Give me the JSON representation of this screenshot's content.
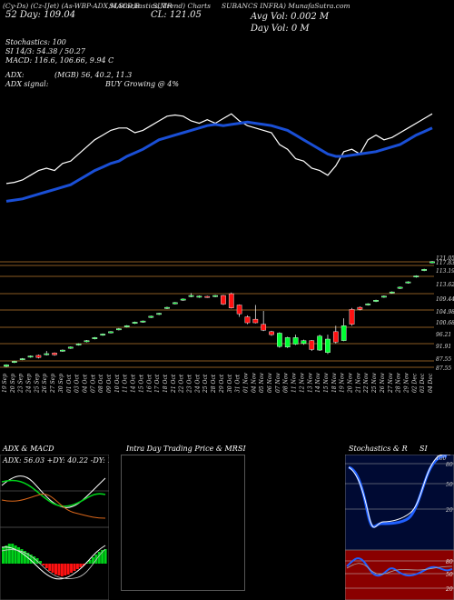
{
  "header": {
    "l1": "(Cy-Ds) (Cz-IJet) (As-WBP-ADX,MACD,B",
    "l1b": "SI,Stochastics,MR",
    "l1c": "SI,Trend) Charts",
    "l1d": "SUBANCS INFRA) MunafaSutra.com",
    "price_line": "CL: 121.05",
    "d52": "52 Day: 109.04",
    "avg_vol": "Avg Vol: 0.002  M",
    "day_vol": "Day Vol: 0  M",
    "stoch_line": "Stochastics: 100",
    "stoch_vals": "SI 14/3: 54.38  / 50.27",
    "macd_line": "MACD: 116.6,  106.66, 9.94  C",
    "adx_line": "ADX:",
    "adx_vals": "(MGB) 56, 40.2,  11.3",
    "adx_signal": "ADX  signal:",
    "adx_signal_val": "BUY Growing @ 4%"
  },
  "colors": {
    "bg": "#000000",
    "up": "#00ff33",
    "down": "#ff1111",
    "ma": "#1a4fd6",
    "grid": "#8a5a22"
  },
  "price_levels": [
    "121.05",
    "117.83",
    "113.19",
    "113.62",
    "109.44",
    "104.98",
    "100.68",
    "96.21",
    "91.91",
    "87.55",
    "87.55"
  ],
  "dates": [
    "19 Sep",
    "20 Sep",
    "23 Sep",
    "24 Sep",
    "25 Sep",
    "26 Sep",
    "27 Sep",
    "30 Sep",
    "01 Oct",
    "03 Oct",
    "04 Oct",
    "07 Oct",
    "08 Oct",
    "09 Oct",
    "10 Oct",
    "11 Oct",
    "14 Oct",
    "15 Oct",
    "16 Oct",
    "17 Oct",
    "18 Oct",
    "21 Oct",
    "22 Oct",
    "23 Oct",
    "24 Oct",
    "25 Oct",
    "28 Oct",
    "29 Oct",
    "30 Oct",
    "31 Oct",
    "01 Nov",
    "04 Nov",
    "05 Nov",
    "06 Nov",
    "07 Nov",
    "08 Nov",
    "11 Nov",
    "12 Nov",
    "13 Nov",
    "14 Nov",
    "15 Nov",
    "18 Nov",
    "19 Nov",
    "20 Nov",
    "21 Nov",
    "22 Nov",
    "25 Nov",
    "26 Nov",
    "27 Nov",
    "28 Nov",
    "29 Nov",
    "02 Dec",
    "03 Dec",
    "04 Dec"
  ],
  "panels": {
    "adx_title": "ADX  & MACD",
    "adx_vals": "ADX: 56.03  +DY: 40.22  -DY: 11.33",
    "intra_title": "Intra  Day Trading Price  & MR",
    "intra_si": "SI",
    "stoch_title": "Stochastics & R",
    "stoch_si": "SI",
    "stoch_ticks": [
      "80",
      "50",
      "20"
    ],
    "rsi_ticks": [
      "80",
      "50",
      "20"
    ],
    "stoch_corner": "100"
  },
  "chart_data": {
    "type": "candlestick",
    "title": "",
    "ylim": [
      85,
      123
    ],
    "candles": [
      {
        "o": 85.3,
        "c": 85.8,
        "h": 86.0,
        "l": 85.0
      },
      {
        "o": 86.6,
        "c": 87.0,
        "h": 87.2,
        "l": 86.4
      },
      {
        "o": 87.6,
        "c": 87.9,
        "h": 88.1,
        "l": 87.4
      },
      {
        "o": 88.4,
        "c": 88.8,
        "h": 89.0,
        "l": 88.2
      },
      {
        "o": 89.0,
        "c": 88.3,
        "h": 89.3,
        "l": 88.0
      },
      {
        "o": 89.2,
        "c": 89.6,
        "h": 90.5,
        "l": 89.0
      },
      {
        "o": 89.8,
        "c": 89.2,
        "h": 90.0,
        "l": 88.9
      },
      {
        "o": 90.4,
        "c": 90.8,
        "h": 91.0,
        "l": 90.2
      },
      {
        "o": 91.4,
        "c": 91.8,
        "h": 92.0,
        "l": 91.2
      },
      {
        "o": 92.5,
        "c": 92.9,
        "h": 93.1,
        "l": 92.3
      },
      {
        "o": 93.6,
        "c": 94.0,
        "h": 94.2,
        "l": 93.4
      },
      {
        "o": 94.6,
        "c": 95.0,
        "h": 95.2,
        "l": 94.4
      },
      {
        "o": 95.8,
        "c": 96.2,
        "h": 96.4,
        "l": 95.6
      },
      {
        "o": 96.6,
        "c": 97.0,
        "h": 97.2,
        "l": 96.4
      },
      {
        "o": 97.6,
        "c": 98.0,
        "h": 98.2,
        "l": 97.4
      },
      {
        "o": 98.6,
        "c": 99.0,
        "h": 99.2,
        "l": 98.4
      },
      {
        "o": 99.8,
        "c": 100.2,
        "h": 100.4,
        "l": 99.6
      },
      {
        "o": 100.2,
        "c": 100.6,
        "h": 100.8,
        "l": 100.0
      },
      {
        "o": 101.8,
        "c": 102.2,
        "h": 102.4,
        "l": 101.6
      },
      {
        "o": 102.8,
        "c": 103.2,
        "h": 103.4,
        "l": 102.6
      },
      {
        "o": 104.8,
        "c": 105.2,
        "h": 105.4,
        "l": 104.6
      },
      {
        "o": 106.4,
        "c": 106.8,
        "h": 107.0,
        "l": 106.2
      },
      {
        "o": 107.6,
        "c": 108.0,
        "h": 108.2,
        "l": 107.4
      },
      {
        "o": 108.8,
        "c": 109.2,
        "h": 110.0,
        "l": 108.6
      },
      {
        "o": 108.6,
        "c": 109.0,
        "h": 109.2,
        "l": 108.4
      },
      {
        "o": 108.9,
        "c": 108.6,
        "h": 109.1,
        "l": 108.4
      },
      {
        "o": 108.8,
        "c": 109.2,
        "h": 109.4,
        "l": 108.6
      },
      {
        "o": 109.2,
        "c": 106.3,
        "h": 109.4,
        "l": 106.0
      },
      {
        "o": 109.8,
        "c": 105.0,
        "h": 110.2,
        "l": 104.8
      },
      {
        "o": 106.0,
        "c": 103.0,
        "h": 106.2,
        "l": 102.0
      },
      {
        "o": 102.0,
        "c": 100.0,
        "h": 102.5,
        "l": 99.5
      },
      {
        "o": 101.2,
        "c": 100.0,
        "h": 106.0,
        "l": 99.8
      },
      {
        "o": 99.5,
        "c": 97.5,
        "h": 104.0,
        "l": 97.2
      },
      {
        "o": 97.0,
        "c": 96.0,
        "h": 97.3,
        "l": 95.6
      },
      {
        "o": 92.0,
        "c": 96.5,
        "h": 96.8,
        "l": 91.6
      },
      {
        "o": 91.8,
        "c": 95.0,
        "h": 95.3,
        "l": 91.5
      },
      {
        "o": 92.8,
        "c": 95.0,
        "h": 96.0,
        "l": 92.5
      },
      {
        "o": 93.0,
        "c": 94.0,
        "h": 94.3,
        "l": 92.6
      },
      {
        "o": 94.0,
        "c": 91.0,
        "h": 94.2,
        "l": 90.5
      },
      {
        "o": 90.8,
        "c": 95.5,
        "h": 96.0,
        "l": 90.5
      },
      {
        "o": 90.0,
        "c": 94.5,
        "h": 96.0,
        "l": 89.5
      },
      {
        "o": 97.0,
        "c": 93.5,
        "h": 99.0,
        "l": 93.0
      },
      {
        "o": 94.0,
        "c": 99.0,
        "h": 101.5,
        "l": 93.8
      },
      {
        "o": 104.5,
        "c": 99.5,
        "h": 105.0,
        "l": 99.0
      },
      {
        "o": 105.2,
        "c": 104.5,
        "h": 105.5,
        "l": 104.2
      },
      {
        "o": 106.0,
        "c": 106.4,
        "h": 106.6,
        "l": 105.8
      },
      {
        "o": 107.2,
        "c": 107.6,
        "h": 107.8,
        "l": 107.0
      },
      {
        "o": 108.6,
        "c": 109.0,
        "h": 109.2,
        "l": 108.4
      },
      {
        "o": 110.0,
        "c": 110.4,
        "h": 110.6,
        "l": 109.8
      },
      {
        "o": 111.6,
        "c": 112.0,
        "h": 112.2,
        "l": 111.4
      },
      {
        "o": 113.4,
        "c": 113.8,
        "h": 114.0,
        "l": 113.2
      },
      {
        "o": 115.4,
        "c": 115.8,
        "h": 116.0,
        "l": 115.2
      },
      {
        "o": 117.6,
        "c": 118.0,
        "h": 118.2,
        "l": 117.4
      },
      {
        "o": 120.2,
        "c": 120.6,
        "h": 120.8,
        "l": 120.0
      }
    ],
    "price_line": [
      [
        0,
        0.63
      ],
      [
        1,
        0.62
      ],
      [
        2,
        0.6
      ],
      [
        3,
        0.56
      ],
      [
        4,
        0.52
      ],
      [
        5,
        0.5
      ],
      [
        6,
        0.52
      ],
      [
        7,
        0.46
      ],
      [
        8,
        0.44
      ],
      [
        9,
        0.38
      ],
      [
        10,
        0.32
      ],
      [
        11,
        0.26
      ],
      [
        12,
        0.22
      ],
      [
        13,
        0.18
      ],
      [
        14,
        0.16
      ],
      [
        15,
        0.16
      ],
      [
        16,
        0.2
      ],
      [
        17,
        0.18
      ],
      [
        18,
        0.14
      ],
      [
        19,
        0.1
      ],
      [
        20,
        0.06
      ],
      [
        21,
        0.05
      ],
      [
        22,
        0.06
      ],
      [
        23,
        0.1
      ],
      [
        24,
        0.12
      ],
      [
        25,
        0.09
      ],
      [
        26,
        0.12
      ],
      [
        27,
        0.08
      ],
      [
        28,
        0.04
      ],
      [
        29,
        0.1
      ],
      [
        30,
        0.14
      ],
      [
        31,
        0.16
      ],
      [
        32,
        0.18
      ],
      [
        33,
        0.2
      ],
      [
        34,
        0.3
      ],
      [
        35,
        0.34
      ],
      [
        36,
        0.42
      ],
      [
        37,
        0.44
      ],
      [
        38,
        0.5
      ],
      [
        39,
        0.52
      ],
      [
        40,
        0.56
      ],
      [
        41,
        0.48
      ],
      [
        42,
        0.36
      ],
      [
        43,
        0.34
      ],
      [
        44,
        0.38
      ],
      [
        45,
        0.26
      ],
      [
        46,
        0.22
      ],
      [
        47,
        0.26
      ],
      [
        48,
        0.24
      ],
      [
        49,
        0.2
      ],
      [
        50,
        0.16
      ],
      [
        51,
        0.12
      ],
      [
        52,
        0.08
      ],
      [
        53,
        0.04
      ]
    ],
    "ma_line": [
      [
        0,
        0.78
      ],
      [
        1,
        0.77
      ],
      [
        2,
        0.76
      ],
      [
        3,
        0.74
      ],
      [
        4,
        0.72
      ],
      [
        5,
        0.7
      ],
      [
        6,
        0.68
      ],
      [
        7,
        0.66
      ],
      [
        8,
        0.64
      ],
      [
        9,
        0.6
      ],
      [
        10,
        0.56
      ],
      [
        11,
        0.52
      ],
      [
        12,
        0.49
      ],
      [
        13,
        0.46
      ],
      [
        14,
        0.44
      ],
      [
        15,
        0.4
      ],
      [
        16,
        0.37
      ],
      [
        17,
        0.34
      ],
      [
        18,
        0.3
      ],
      [
        19,
        0.26
      ],
      [
        20,
        0.24
      ],
      [
        21,
        0.22
      ],
      [
        22,
        0.2
      ],
      [
        23,
        0.18
      ],
      [
        24,
        0.16
      ],
      [
        25,
        0.14
      ],
      [
        26,
        0.13
      ],
      [
        27,
        0.14
      ],
      [
        28,
        0.13
      ],
      [
        29,
        0.12
      ],
      [
        30,
        0.11
      ],
      [
        31,
        0.12
      ],
      [
        32,
        0.13
      ],
      [
        33,
        0.14
      ],
      [
        34,
        0.16
      ],
      [
        35,
        0.18
      ],
      [
        36,
        0.22
      ],
      [
        37,
        0.26
      ],
      [
        38,
        0.3
      ],
      [
        39,
        0.34
      ],
      [
        40,
        0.38
      ],
      [
        41,
        0.4
      ],
      [
        42,
        0.4
      ],
      [
        43,
        0.39
      ],
      [
        44,
        0.38
      ],
      [
        45,
        0.37
      ],
      [
        46,
        0.36
      ],
      [
        47,
        0.34
      ],
      [
        48,
        0.32
      ],
      [
        49,
        0.3
      ],
      [
        50,
        0.26
      ],
      [
        51,
        0.22
      ],
      [
        52,
        0.19
      ],
      [
        53,
        0.16
      ]
    ],
    "volume": []
  }
}
